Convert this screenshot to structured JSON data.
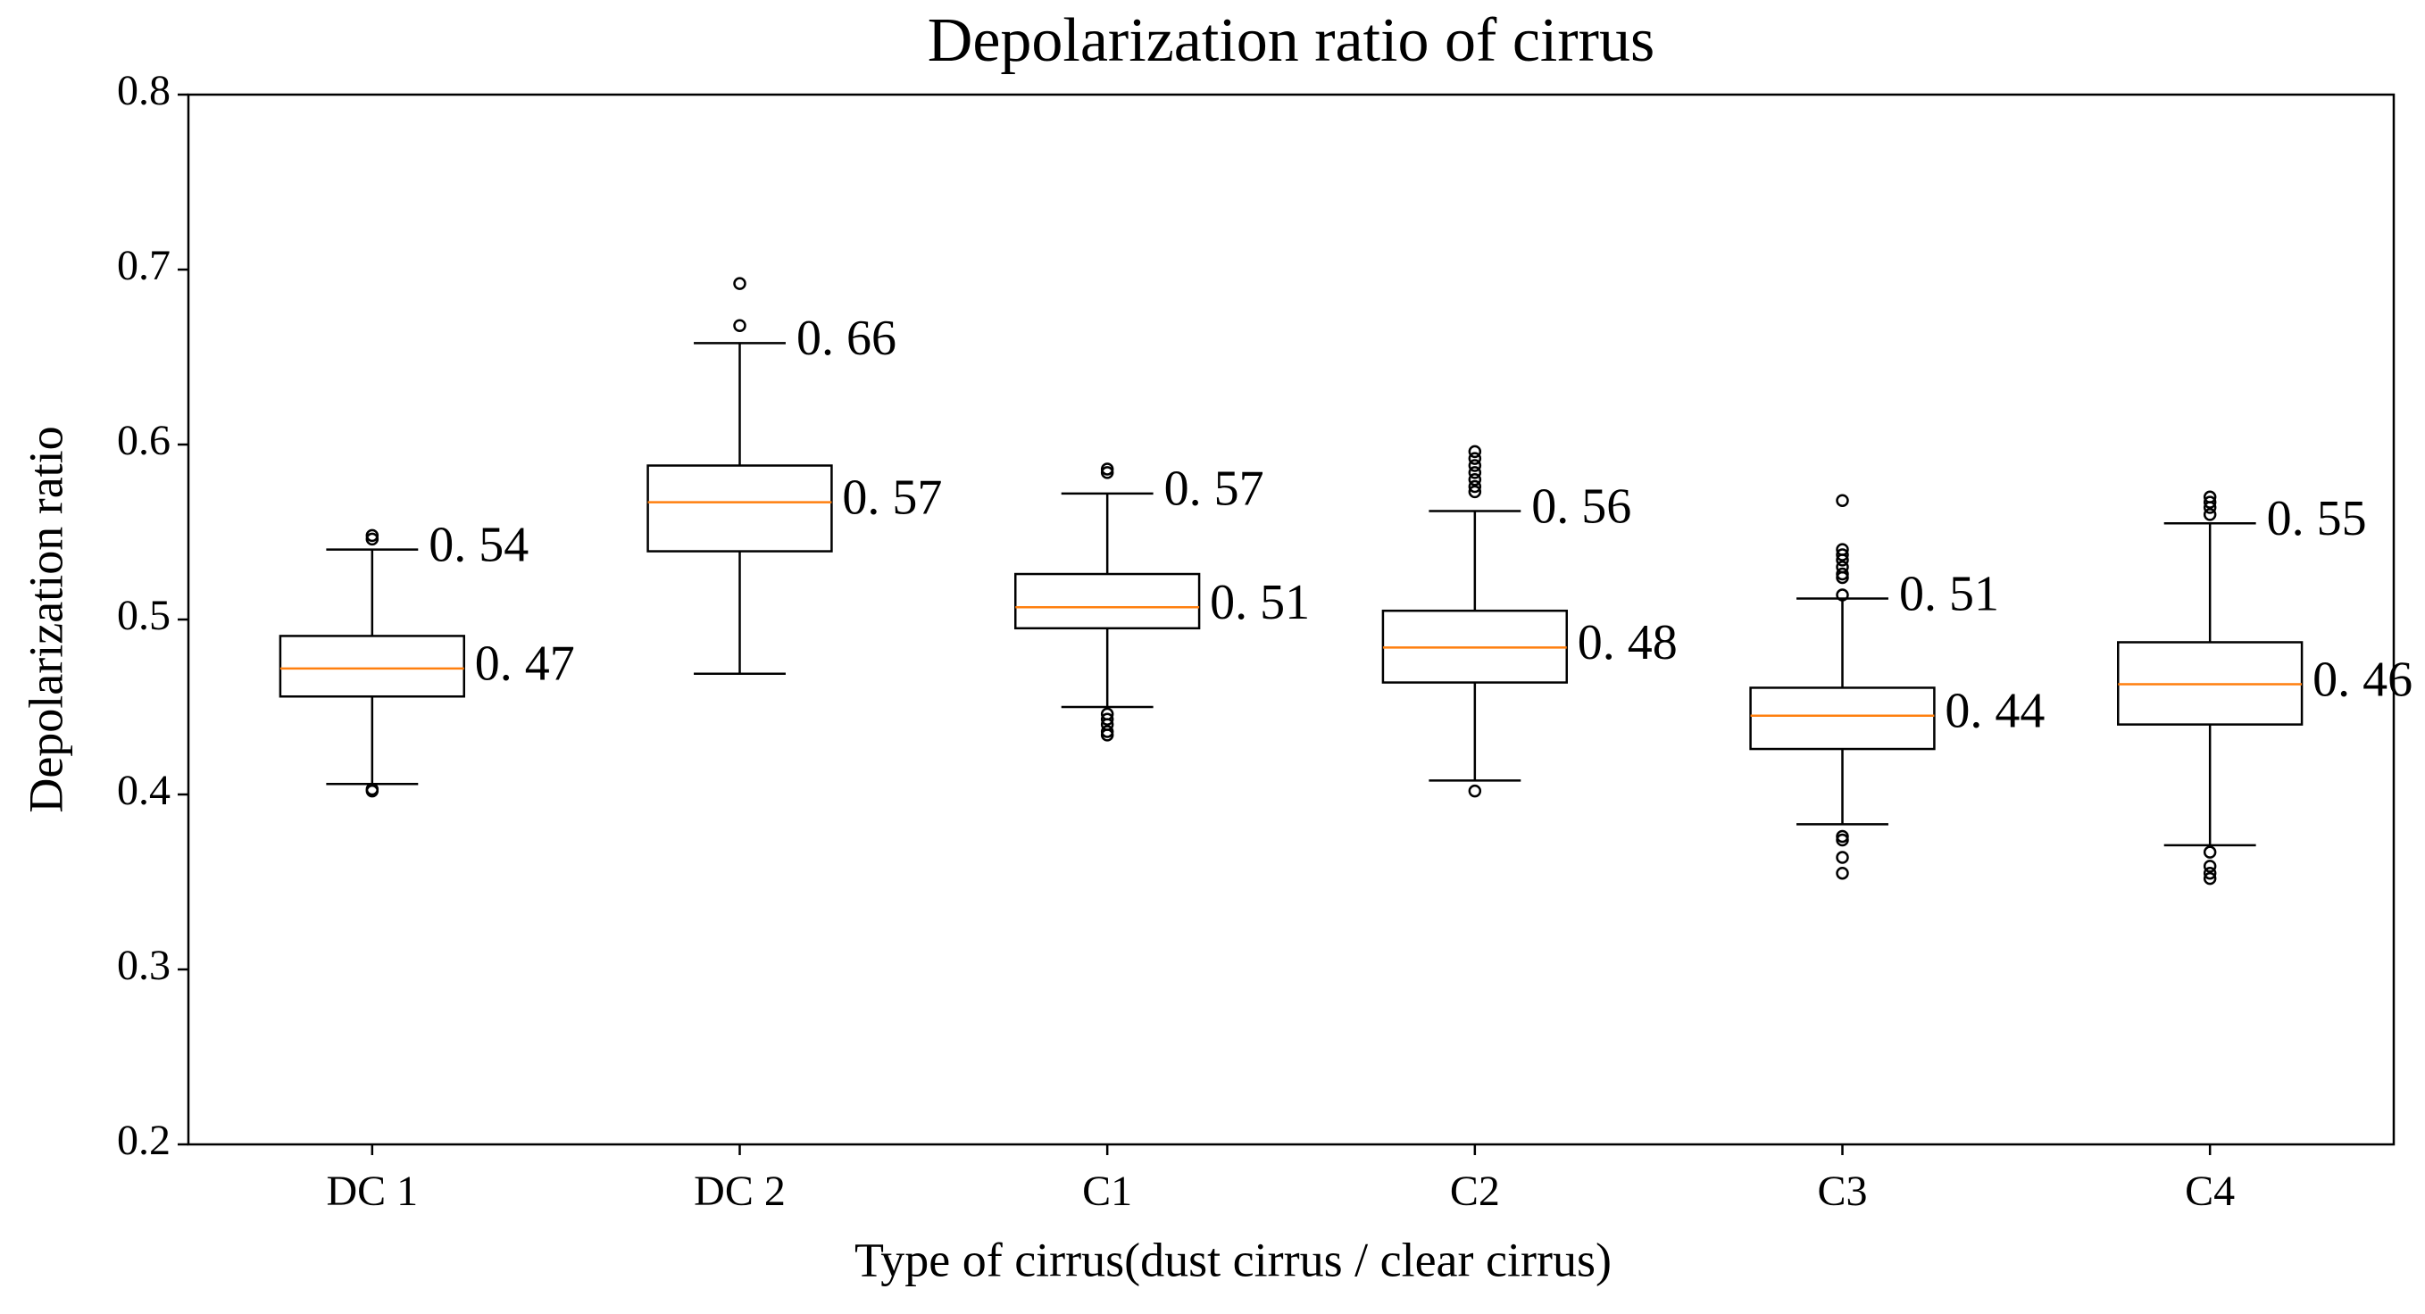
{
  "chart_data": {
    "type": "box",
    "title": "Depolarization ratio of cirrus",
    "x_label": "Type of cirrus(dust cirrus / clear cirrus)",
    "y_label": "Depolarization ratio",
    "categories": [
      "DC 1",
      "DC 2",
      "C1",
      "C2",
      "C3",
      "C4"
    ],
    "whislo": [
      0.406,
      0.469,
      0.45,
      0.408,
      0.383,
      0.371
    ],
    "q1": [
      0.456,
      0.539,
      0.495,
      0.464,
      0.426,
      0.44
    ],
    "med": [
      0.472,
      0.567,
      0.507,
      0.484,
      0.445,
      0.463
    ],
    "q3": [
      0.4906,
      0.588,
      0.526,
      0.505,
      0.461,
      0.487
    ],
    "whishi": [
      0.54,
      0.658,
      0.572,
      0.562,
      0.512,
      0.555
    ],
    "med_labels": [
      "0. 47",
      "0. 57",
      "0. 51",
      "0. 48",
      "0. 44",
      "0. 46"
    ],
    "whishi_labels": [
      "0. 54",
      "0. 66",
      "0. 57",
      "0. 56",
      "0. 51",
      "0. 55"
    ],
    "fliers": [
      [
        0.548,
        0.546,
        0.403,
        0.402
      ],
      [
        0.692,
        0.668
      ],
      [
        0.586,
        0.584,
        0.446,
        0.443,
        0.44,
        0.436,
        0.434
      ],
      [
        0.596,
        0.592,
        0.588,
        0.584,
        0.58,
        0.576,
        0.573,
        0.402
      ],
      [
        0.568,
        0.54,
        0.537,
        0.534,
        0.53,
        0.526,
        0.524,
        0.514,
        0.376,
        0.374,
        0.364,
        0.355
      ],
      [
        0.57,
        0.567,
        0.564,
        0.56,
        0.367,
        0.359,
        0.355,
        0.352
      ]
    ],
    "box_color": "#000000",
    "median_color": "#ff7f0e",
    "ylim": [
      0.2,
      0.8
    ],
    "yticks": [
      0.2,
      0.3,
      0.4,
      0.5,
      0.6,
      0.7,
      0.8
    ],
    "grid": false
  }
}
